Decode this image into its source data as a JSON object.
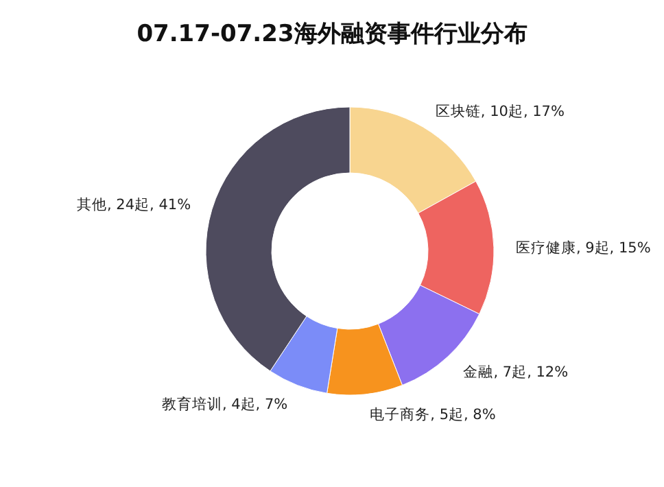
{
  "chart_data": {
    "type": "donut",
    "title": "07.17-07.23海外融资事件行业分布",
    "categories": [
      "区块链",
      "医疗健康",
      "金融",
      "电子商务",
      "教育培训",
      "其他"
    ],
    "values": [
      10,
      9,
      7,
      5,
      4,
      24
    ],
    "value_labels": [
      "10起, 17%",
      "9起, 15%",
      "7起, 12%",
      "5起, 8%",
      "4起, 7%",
      "24起, 41%"
    ],
    "colors": [
      "#f8d590",
      "#ee6460",
      "#8c70ef",
      "#f7931e",
      "#7b8cf8",
      "#4e4b5e"
    ]
  }
}
